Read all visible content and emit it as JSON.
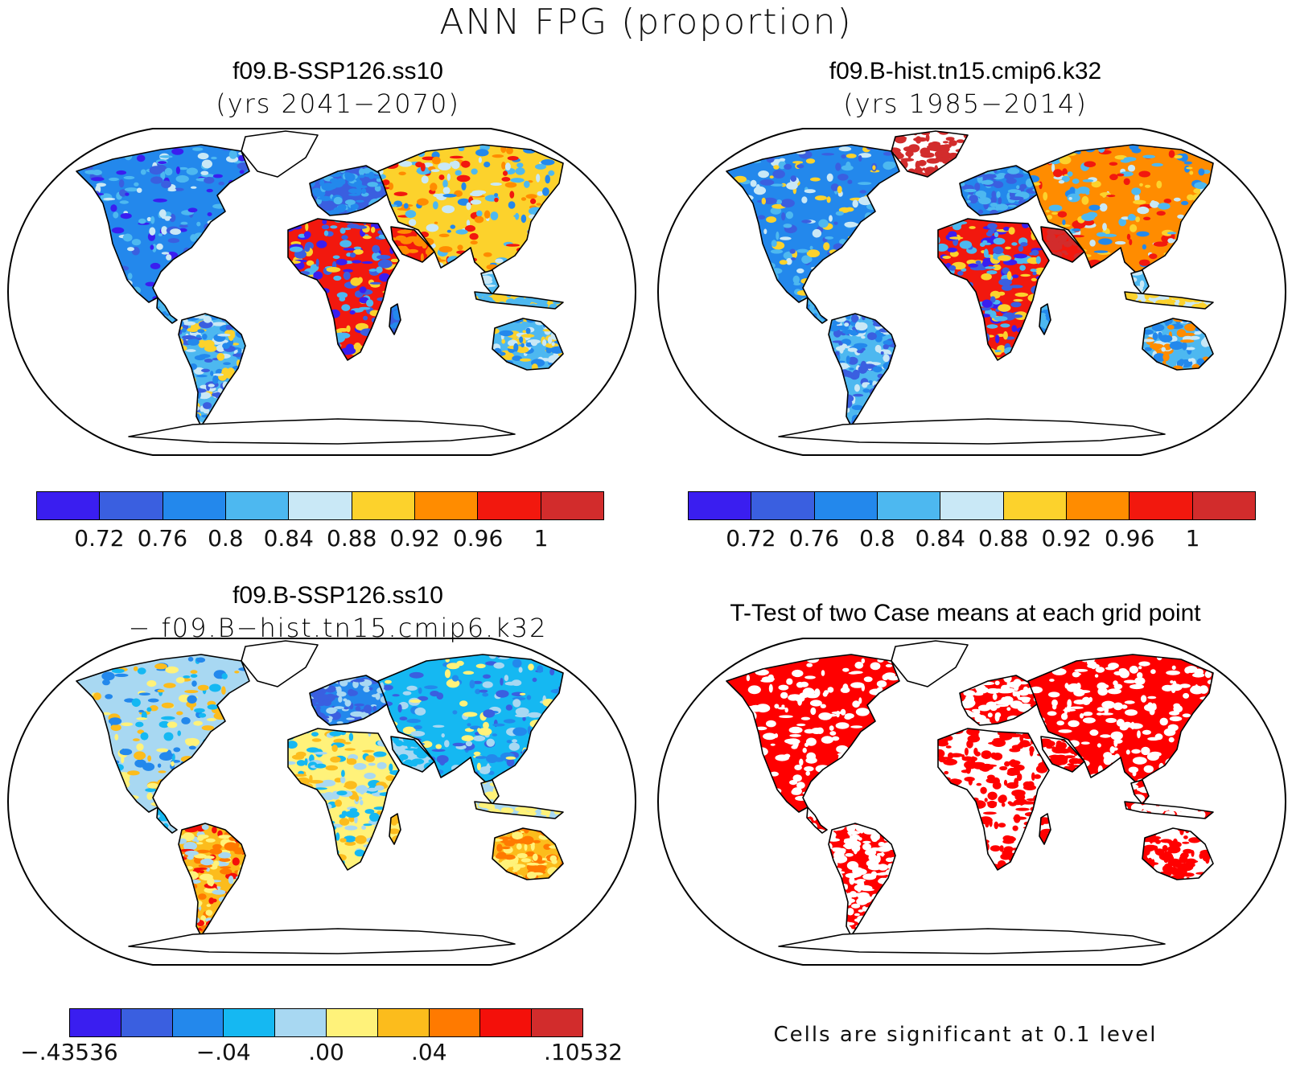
{
  "figure": {
    "title": "ANN FPG (proportion)"
  },
  "panels": {
    "top_left": {
      "title_line1": "f09.B-SSP126.ss10",
      "title_line2": "(yrs 2041−2070)"
    },
    "top_right": {
      "title_line1": "f09.B-hist.tn15.cmip6.k32",
      "title_line2": "(yrs 1985−2014)"
    },
    "bottom_left": {
      "title_line1": "f09.B-SSP126.ss10",
      "title_line2": "− f09.B−hist.tn15.cmip6.k32"
    },
    "bottom_right": {
      "title": "T-Test of two Case means at each grid point",
      "note": "Cells are significant at 0.1 level"
    }
  },
  "colorbars": {
    "absolute": {
      "colors": [
        "#3a1ef0",
        "#3a5fe0",
        "#2388ec",
        "#4db8f0",
        "#c9e8f6",
        "#fcd22c",
        "#ff8c00",
        "#f2180e",
        "#d22c2c"
      ],
      "labels": [
        "0.72",
        "0.76",
        "0.8",
        "0.84",
        "0.88",
        "0.92",
        "0.96",
        "1"
      ]
    },
    "difference": {
      "colors": [
        "#3a1ef0",
        "#3a5fe0",
        "#2388ec",
        "#15b8f2",
        "#a8d8f2",
        "#fff27a",
        "#fcbc1c",
        "#ff7a00",
        "#f4100a",
        "#d22c2c"
      ],
      "labels": [
        {
          "text": "−.43536",
          "at": 0
        },
        {
          "text": "−.04",
          "at": 3
        },
        {
          "text": ".00",
          "at": 5
        },
        {
          "text": ".04",
          "at": 7
        },
        {
          "text": ".10532",
          "at": 10
        }
      ]
    }
  },
  "significance_color": "#ff0000"
}
